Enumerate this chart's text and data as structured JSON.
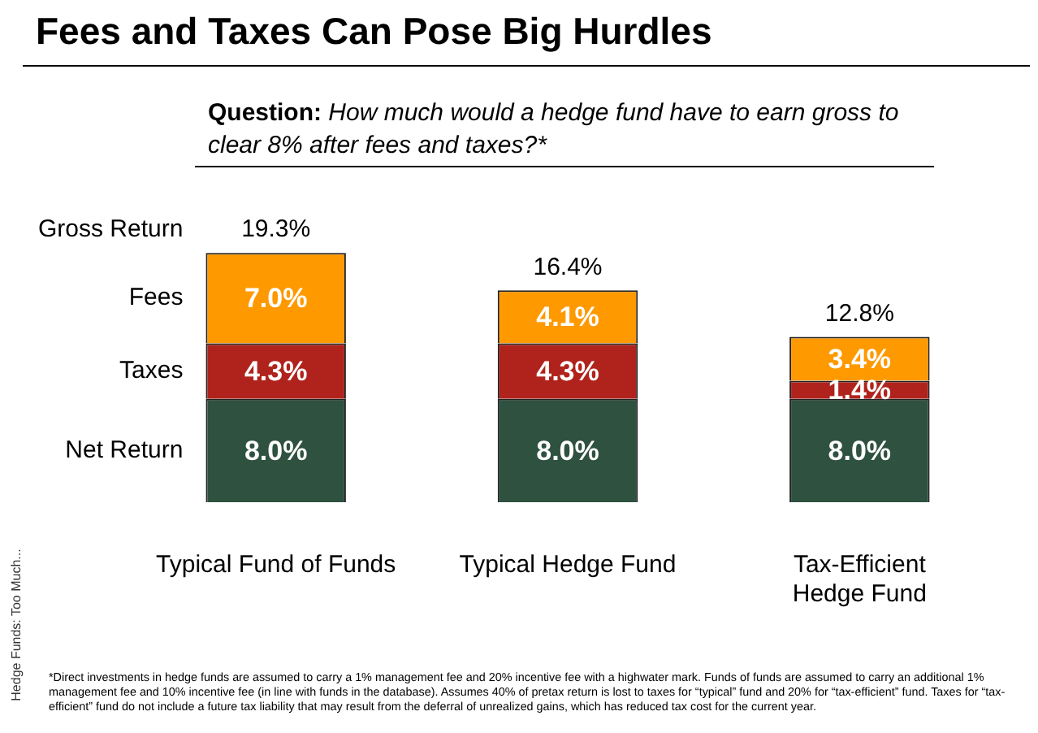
{
  "chart_data": {
    "type": "bar",
    "stacked": true,
    "title": "Fees and Taxes Can Pose Big Hurdles",
    "subtitle": "Question: How much would a hedge fund have to earn gross to clear 8% after fees and taxes?*",
    "categories": [
      "Typical Fund of Funds",
      "Typical Hedge Fund",
      "Tax-Efficient Hedge Fund"
    ],
    "series": [
      {
        "name": "Net Return",
        "color": "#2f5140",
        "values": [
          8.0,
          8.0,
          8.0
        ],
        "value_labels": [
          "8.0%",
          "8.0%",
          "8.0%"
        ]
      },
      {
        "name": "Taxes",
        "color": "#b0231c",
        "values": [
          4.3,
          4.3,
          1.4
        ],
        "value_labels": [
          "4.3%",
          "4.3%",
          "1.4%"
        ]
      },
      {
        "name": "Fees",
        "color": "#ff9900",
        "values": [
          7.0,
          4.1,
          3.4
        ],
        "value_labels": [
          "7.0%",
          "4.1%",
          "3.4%"
        ]
      }
    ],
    "totals": [
      "19.3%",
      "16.4%",
      "12.8%"
    ],
    "legend": false,
    "grid": false,
    "tick_labels": "x",
    "annotations": [
      "Gross Return",
      "Hedge Funds: Too Much...",
      "*Direct investments in hedge funds are assumed to carry a 1% management fee and 20% incentive fee with a highwater mark. Funds of funds are assumed to carry an additional 1% management fee and 10% incentive fee (in line with funds in the database). Assumes 40% of pretax return is lost to taxes for “typical” fund and 20% for “tax-efficient” fund. Taxes for “tax-efficient” fund do not include a future tax liability that may result from the deferral of unrealized gains, which has reduced tax cost for the current year."
    ]
  }
}
